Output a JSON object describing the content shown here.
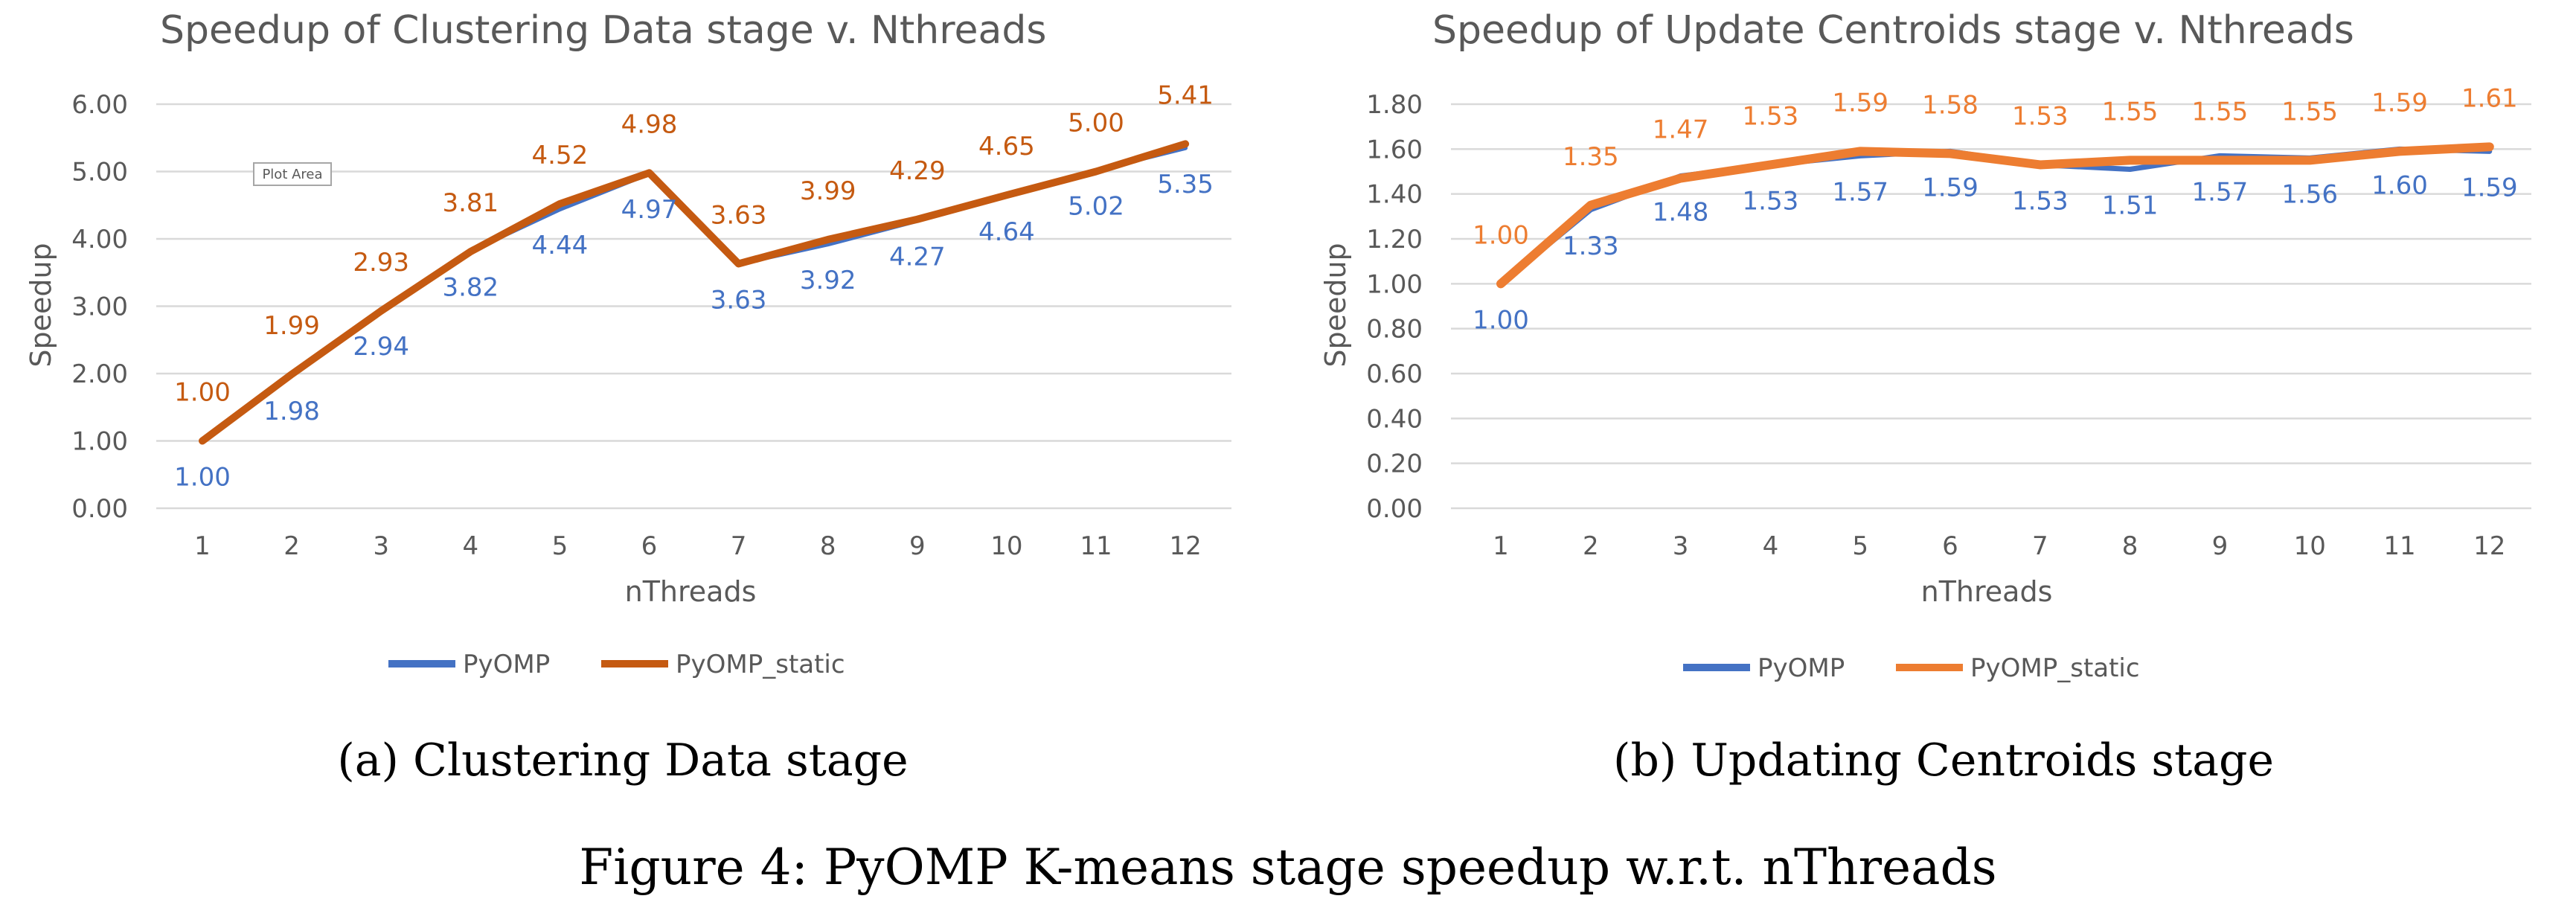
{
  "figure_caption": "Figure 4: PyOMP K-means stage speedup w.r.t. nThreads",
  "subcaptions": [
    "(a) Clustering Data stage",
    "(b) Updating Centroids stage"
  ],
  "tooltip_label": "Plot Area",
  "chart_data": [
    {
      "type": "line",
      "title": "Speedup of Clustering Data stage v. Nthreads",
      "xlabel": "nThreads",
      "ylabel": "Speedup",
      "x": [
        1,
        2,
        3,
        4,
        5,
        6,
        7,
        8,
        9,
        10,
        11,
        12
      ],
      "x_tick_labels": [
        "1",
        "2",
        "3",
        "4",
        "5",
        "6",
        "7",
        "8",
        "9",
        "10",
        "11",
        "12"
      ],
      "ylim": [
        0,
        6
      ],
      "y_tick_labels": [
        "0.00",
        "1.00",
        "2.00",
        "3.00",
        "4.00",
        "5.00",
        "6.00"
      ],
      "grid": true,
      "legend_position": "bottom",
      "series": [
        {
          "name": "PyOMP",
          "color": "#4472C4",
          "values": [
            1.0,
            1.98,
            2.94,
            3.82,
            4.44,
            4.97,
            3.63,
            3.92,
            4.27,
            4.64,
            5.02,
            5.35
          ],
          "labels": [
            "1.00",
            "1.98",
            "2.94",
            "3.82",
            "4.44",
            "4.97",
            "3.63",
            "3.92",
            "4.27",
            "4.64",
            "5.02",
            "5.35"
          ]
        },
        {
          "name": "PyOMP_static",
          "color": "#C55A11",
          "values": [
            1.0,
            1.99,
            2.93,
            3.81,
            4.52,
            4.98,
            3.63,
            3.99,
            4.29,
            4.65,
            5.0,
            5.41
          ],
          "labels": [
            "1.00",
            "1.99",
            "2.93",
            "3.81",
            "4.52",
            "4.98",
            "3.63",
            "3.99",
            "4.29",
            "4.65",
            "5.00",
            "5.41"
          ]
        }
      ]
    },
    {
      "type": "line",
      "title": "Speedup of Update Centroids stage v. Nthreads",
      "xlabel": "nThreads",
      "ylabel": "Speedup",
      "x": [
        1,
        2,
        3,
        4,
        5,
        6,
        7,
        8,
        9,
        10,
        11,
        12
      ],
      "x_tick_labels": [
        "1",
        "2",
        "3",
        "4",
        "5",
        "6",
        "7",
        "8",
        "9",
        "10",
        "11",
        "12"
      ],
      "ylim": [
        0,
        1.8
      ],
      "y_tick_labels": [
        "0.00",
        "0.20",
        "0.40",
        "0.60",
        "0.80",
        "1.00",
        "1.20",
        "1.40",
        "1.60",
        "1.80"
      ],
      "grid": true,
      "legend_position": "bottom",
      "series": [
        {
          "name": "PyOMP",
          "color": "#4472C4",
          "values": [
            1.0,
            1.33,
            1.48,
            1.53,
            1.57,
            1.59,
            1.53,
            1.51,
            1.57,
            1.56,
            1.6,
            1.59
          ],
          "labels": [
            "1.00",
            "1.33",
            "1.48",
            "1.53",
            "1.57",
            "1.59",
            "1.53",
            "1.51",
            "1.57",
            "1.56",
            "1.60",
            "1.59"
          ]
        },
        {
          "name": "PyOMP_static",
          "color": "#ED7D31",
          "values": [
            1.0,
            1.35,
            1.47,
            1.53,
            1.59,
            1.58,
            1.53,
            1.55,
            1.55,
            1.55,
            1.59,
            1.61
          ],
          "labels": [
            "1.00",
            "1.35",
            "1.47",
            "1.53",
            "1.59",
            "1.58",
            "1.53",
            "1.55",
            "1.55",
            "1.55",
            "1.59",
            "1.61"
          ]
        }
      ]
    }
  ]
}
